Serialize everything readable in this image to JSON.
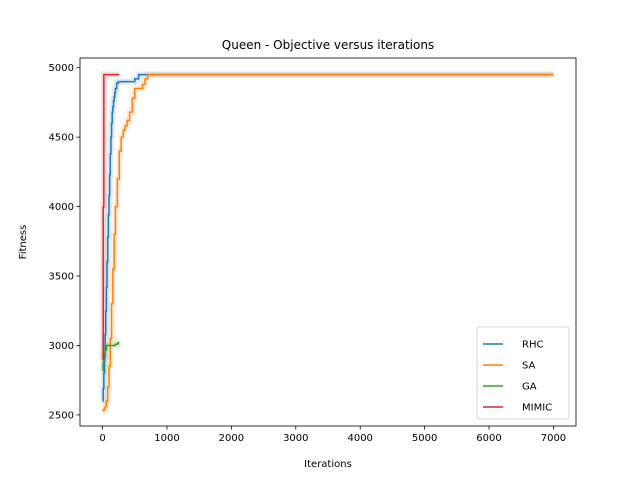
{
  "chart_data": {
    "type": "line",
    "title": "Queen - Objective versus iterations",
    "xlabel": "Iterations",
    "ylabel": "Fitness",
    "xlim": [
      -350,
      7350
    ],
    "ylim": [
      2420,
      5070
    ],
    "xticks": [
      0,
      1000,
      2000,
      3000,
      4000,
      5000,
      6000,
      7000
    ],
    "yticks": [
      2500,
      3000,
      3500,
      4000,
      4500,
      5000
    ],
    "grid": false,
    "legend_position": "lower-right",
    "series": [
      {
        "name": "RHC",
        "color": "#1f77b4",
        "x": [
          0,
          10,
          20,
          30,
          40,
          50,
          60,
          70,
          80,
          90,
          100,
          110,
          120,
          130,
          140,
          150,
          160,
          170,
          180,
          190,
          200,
          220,
          250,
          300,
          400,
          500,
          560,
          620,
          700,
          1000,
          7000
        ],
        "y": [
          2600,
          2690,
          2800,
          2920,
          3080,
          3250,
          3420,
          3600,
          3780,
          3940,
          4080,
          4230,
          4380,
          4500,
          4600,
          4680,
          4720,
          4760,
          4790,
          4820,
          4850,
          4890,
          4900,
          4900,
          4900,
          4920,
          4950,
          4950,
          4950,
          4950,
          4950
        ]
      },
      {
        "name": "SA",
        "color": "#ff7f0e",
        "x": [
          0,
          20,
          40,
          60,
          80,
          100,
          120,
          140,
          160,
          180,
          200,
          230,
          260,
          290,
          320,
          350,
          380,
          420,
          460,
          500,
          540,
          580,
          620,
          660,
          700,
          740,
          1000,
          7000
        ],
        "y": [
          2530,
          2540,
          2560,
          2600,
          2700,
          2850,
          3050,
          3300,
          3550,
          3800,
          4000,
          4200,
          4400,
          4500,
          4550,
          4580,
          4620,
          4680,
          4780,
          4850,
          4850,
          4850,
          4880,
          4920,
          4950,
          4950,
          4950,
          4950
        ]
      },
      {
        "name": "GA",
        "color": "#2ca02c",
        "x": [
          0,
          10,
          20,
          40,
          60,
          80,
          100,
          140,
          180,
          200,
          240,
          260
        ],
        "y": [
          2820,
          2870,
          2930,
          2970,
          3000,
          3000,
          3000,
          3000,
          3000,
          3010,
          3020,
          3020
        ]
      },
      {
        "name": "MIMIC",
        "color": "#d62728",
        "x": [
          0,
          10,
          20,
          40,
          80,
          160,
          260
        ],
        "y": [
          2900,
          4000,
          4950,
          4950,
          4950,
          4950,
          4950
        ]
      }
    ]
  }
}
